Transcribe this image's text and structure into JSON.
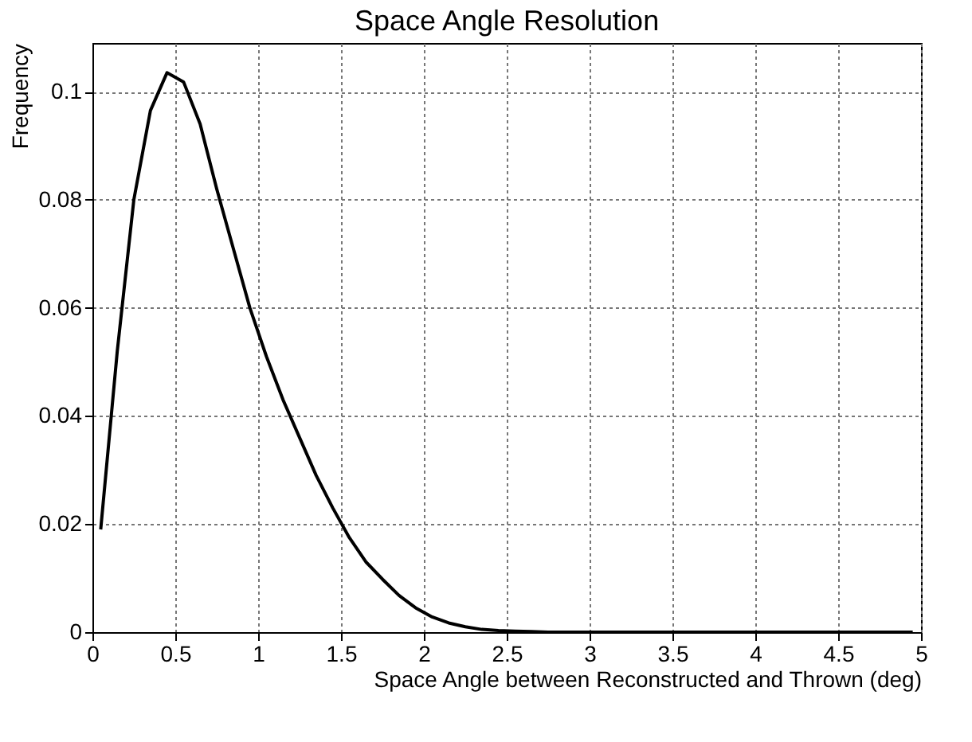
{
  "chart_data": {
    "type": "line",
    "title": "Space Angle Resolution",
    "xlabel": "Space Angle between Reconstructed and Thrown (deg)",
    "ylabel": "Frequency",
    "x": [
      0.05,
      0.15,
      0.25,
      0.35,
      0.45,
      0.55,
      0.65,
      0.75,
      0.85,
      0.95,
      1.05,
      1.15,
      1.25,
      1.35,
      1.45,
      1.55,
      1.65,
      1.75,
      1.85,
      1.95,
      2.05,
      2.15,
      2.25,
      2.35,
      2.45,
      2.55,
      2.65,
      2.75,
      2.85,
      2.95,
      3.05,
      3.5,
      4.0,
      4.5,
      4.95
    ],
    "series": [
      {
        "color": "#000000",
        "values": [
          0.019,
          0.052,
          0.08,
          0.0965,
          0.1035,
          0.1018,
          0.094,
          0.082,
          0.071,
          0.06,
          0.051,
          0.043,
          0.036,
          0.029,
          0.023,
          0.0175,
          0.013,
          0.0098,
          0.0068,
          0.0045,
          0.0028,
          0.0017,
          0.001,
          0.0005,
          0.0003,
          0.0002,
          0.0001,
          0,
          0,
          0,
          0,
          0,
          0,
          0,
          0
        ]
      }
    ],
    "xlim": [
      0,
      5
    ],
    "xticks": [
      0,
      0.5,
      1,
      1.5,
      2,
      2.5,
      3,
      3.5,
      4,
      4.5,
      5
    ],
    "ylim": [
      0,
      0.109
    ],
    "yticks": [
      0,
      0.02,
      0.04,
      0.06,
      0.08,
      0.1
    ],
    "grid": true,
    "line_style": "solid",
    "marker": "none"
  }
}
